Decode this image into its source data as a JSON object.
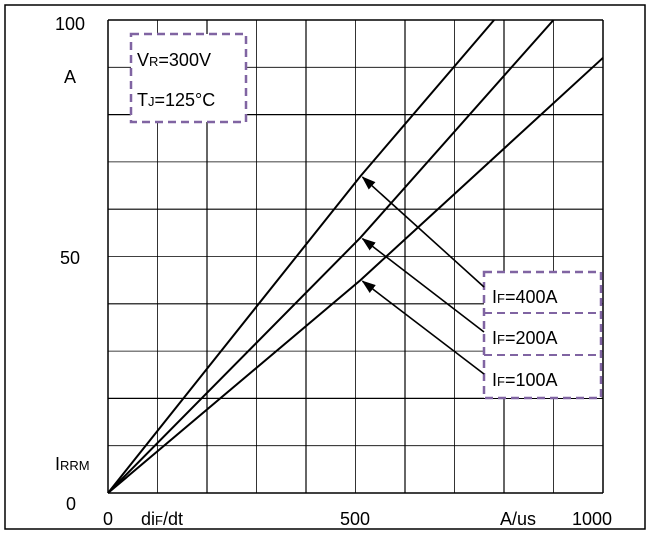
{
  "chart_data": {
    "type": "line",
    "title": "",
    "xlabel": {
      "main": "di",
      "sub": "F",
      "tail": "/dt"
    },
    "x_unit": "A/us",
    "ylabel": {
      "main": "I",
      "sub": "RRM"
    },
    "y_unit": "A",
    "xlim": [
      0,
      1000
    ],
    "ylim": [
      0,
      100
    ],
    "x_ticks": [
      {
        "value": 0,
        "label": "0"
      },
      {
        "value": 500,
        "label": "500"
      },
      {
        "value": 1000,
        "label": "1000"
      }
    ],
    "y_ticks": [
      {
        "value": 0,
        "label": "0"
      },
      {
        "value": 50,
        "label": "50"
      },
      {
        "value": 100,
        "label": "100"
      }
    ],
    "grid": true,
    "conditions": [
      {
        "main": "V",
        "sub": "R",
        "rest": "=300V"
      },
      {
        "main": "T",
        "sub": "J",
        "rest": "=125°C"
      }
    ],
    "series": [
      {
        "label": {
          "main": "I",
          "sub": "F",
          "rest": "=400A"
        },
        "x": [
          0,
          510,
          780
        ],
        "y": [
          0,
          67,
          100
        ],
        "arrow_target": [
          510,
          67
        ]
      },
      {
        "label": {
          "main": "I",
          "sub": "F",
          "rest": "=200A"
        },
        "x": [
          0,
          510,
          900
        ],
        "y": [
          0,
          54,
          100
        ],
        "arrow_target": [
          510,
          54
        ]
      },
      {
        "label": {
          "main": "I",
          "sub": "F",
          "rest": "=100A"
        },
        "x": [
          0,
          510,
          1000
        ],
        "y": [
          0,
          45,
          92
        ],
        "arrow_target": [
          510,
          45
        ]
      }
    ]
  }
}
